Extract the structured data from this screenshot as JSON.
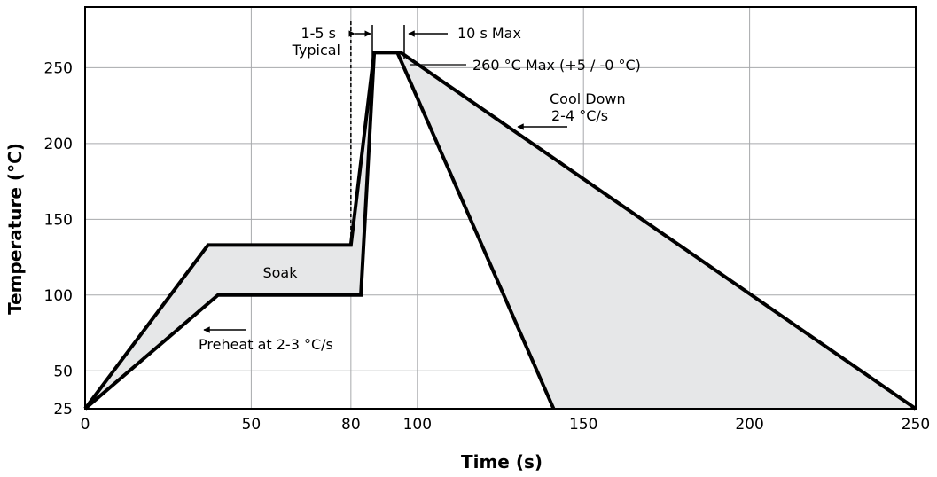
{
  "chart_data": {
    "type": "area",
    "xlabel": "Time (s)",
    "ylabel": "Temperature (°C)",
    "xlim": [
      0,
      250
    ],
    "ylim": [
      25,
      290
    ],
    "x_ticks": [
      0,
      50,
      80,
      100,
      150,
      200,
      250
    ],
    "y_ticks": [
      25,
      50,
      100,
      150,
      200,
      250
    ],
    "grid": true,
    "fill_color": "#e6e7e8",
    "line_color": "#000000",
    "series": [
      {
        "values": [
          [
            0,
            25
          ],
          [
            37,
            133
          ],
          [
            80,
            133
          ],
          [
            87,
            260
          ],
          [
            95,
            260
          ],
          [
            250,
            25
          ]
        ]
      },
      {
        "values": [
          [
            0,
            25
          ],
          [
            40,
            100
          ],
          [
            83,
            100
          ],
          [
            87,
            260
          ],
          [
            94,
            260
          ],
          [
            141,
            25
          ]
        ]
      }
    ],
    "annotations": {
      "soak": "Soak",
      "preheat": "Preheat at 2-3 °C/s",
      "typical_1": "1-5 s",
      "typical_2": "Typical",
      "max_time": "10 s Max",
      "max_temp": "260 °C Max (+5 / -0 °C)",
      "cool_1": "Cool Down",
      "cool_2": "2-4 °C/s"
    }
  }
}
